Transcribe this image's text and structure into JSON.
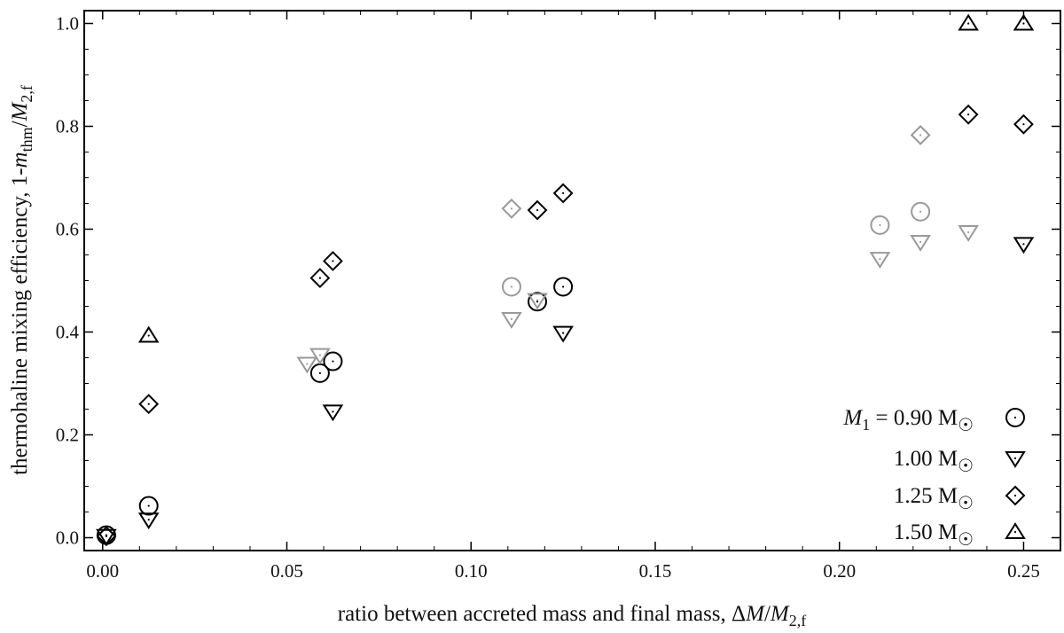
{
  "chart_data": {
    "type": "scatter",
    "xlabel": "ratio between accreted mass and final mass, ΔM/M2,f",
    "ylabel": "thermohaline mixing efficiency, 1-mthm/M2,f",
    "xlim": [
      -0.005,
      0.26
    ],
    "ylim": [
      -0.025,
      1.025
    ],
    "x_ticks": [
      0.0,
      0.05,
      0.1,
      0.15,
      0.2,
      0.25
    ],
    "x_tick_labels": [
      "0.00",
      "0.05",
      "0.10",
      "0.15",
      "0.20",
      "0.25"
    ],
    "y_ticks": [
      0.0,
      0.2,
      0.4,
      0.6,
      0.8,
      1.0
    ],
    "y_tick_labels": [
      "0.0",
      "0.2",
      "0.4",
      "0.6",
      "0.8",
      "1.0"
    ],
    "grid": false,
    "legend_position": "bottom-right",
    "colors": {
      "dark": "#000000",
      "light": "#999999"
    },
    "series": [
      {
        "name": "M1 = 0.90 M☉",
        "legend_label": "= 0.90 M☉",
        "legend_prefix": "M",
        "legend_sub": "1",
        "marker": "circle",
        "points": [
          {
            "x": 0.001,
            "y": 0.005,
            "shade": "dark"
          },
          {
            "x": 0.0125,
            "y": 0.062,
            "shade": "dark"
          },
          {
            "x": 0.059,
            "y": 0.32,
            "shade": "dark"
          },
          {
            "x": 0.0625,
            "y": 0.343,
            "shade": "dark"
          },
          {
            "x": 0.111,
            "y": 0.488,
            "shade": "light"
          },
          {
            "x": 0.118,
            "y": 0.459,
            "shade": "dark"
          },
          {
            "x": 0.125,
            "y": 0.488,
            "shade": "dark"
          },
          {
            "x": 0.211,
            "y": 0.608,
            "shade": "light"
          },
          {
            "x": 0.222,
            "y": 0.634,
            "shade": "light"
          }
        ]
      },
      {
        "name": "1.00 M☉",
        "legend_label": "1.00 M☉",
        "marker": "triangle-down",
        "points": [
          {
            "x": 0.001,
            "y": 0.003,
            "shade": "dark"
          },
          {
            "x": 0.0125,
            "y": 0.035,
            "shade": "dark"
          },
          {
            "x": 0.0555,
            "y": 0.338,
            "shade": "light"
          },
          {
            "x": 0.059,
            "y": 0.355,
            "shade": "light"
          },
          {
            "x": 0.0625,
            "y": 0.245,
            "shade": "dark"
          },
          {
            "x": 0.111,
            "y": 0.425,
            "shade": "light"
          },
          {
            "x": 0.118,
            "y": 0.462,
            "shade": "light"
          },
          {
            "x": 0.125,
            "y": 0.398,
            "shade": "dark"
          },
          {
            "x": 0.211,
            "y": 0.542,
            "shade": "light"
          },
          {
            "x": 0.222,
            "y": 0.575,
            "shade": "light"
          },
          {
            "x": 0.235,
            "y": 0.594,
            "shade": "light"
          },
          {
            "x": 0.25,
            "y": 0.571,
            "shade": "dark"
          }
        ]
      },
      {
        "name": "1.25 M☉",
        "legend_label": "1.25 M☉",
        "marker": "diamond",
        "points": [
          {
            "x": 0.001,
            "y": 0.003,
            "shade": "dark"
          },
          {
            "x": 0.0125,
            "y": 0.26,
            "shade": "dark"
          },
          {
            "x": 0.059,
            "y": 0.505,
            "shade": "dark"
          },
          {
            "x": 0.0625,
            "y": 0.538,
            "shade": "dark"
          },
          {
            "x": 0.111,
            "y": 0.64,
            "shade": "light"
          },
          {
            "x": 0.118,
            "y": 0.637,
            "shade": "dark"
          },
          {
            "x": 0.125,
            "y": 0.67,
            "shade": "dark"
          },
          {
            "x": 0.222,
            "y": 0.783,
            "shade": "light"
          },
          {
            "x": 0.235,
            "y": 0.823,
            "shade": "dark"
          },
          {
            "x": 0.25,
            "y": 0.804,
            "shade": "dark"
          }
        ]
      },
      {
        "name": "1.50 M☉",
        "legend_label": "1.50 M☉",
        "marker": "triangle-up",
        "points": [
          {
            "x": 0.0125,
            "y": 0.393,
            "shade": "dark"
          },
          {
            "x": 0.235,
            "y": 1.0,
            "shade": "dark"
          },
          {
            "x": 0.25,
            "y": 1.0,
            "shade": "dark"
          }
        ]
      }
    ]
  }
}
